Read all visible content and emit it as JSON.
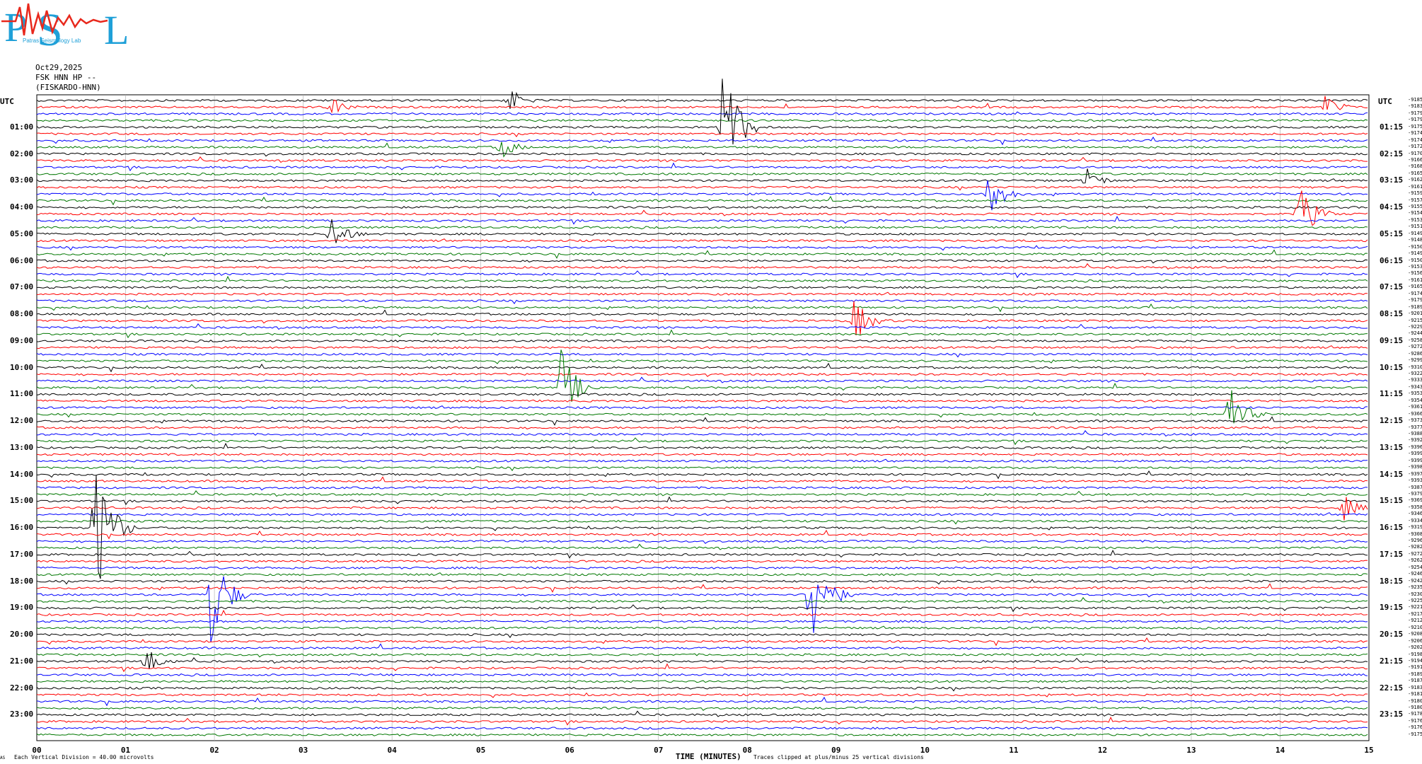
{
  "logo": {
    "letters": [
      "P",
      "S",
      "L"
    ],
    "subtitle": "Patras Seismology Lab",
    "colors": {
      "primary": "#1fa0d8",
      "wave": "#e8281c"
    }
  },
  "header": {
    "date": "Oct29,2025",
    "station": "FSK HNN HP --",
    "site": "(FISKARDO-HNN)"
  },
  "axis": {
    "utc_left": "UTC",
    "utc_right": "UTC",
    "left_times": [
      "01:00",
      "02:00",
      "03:00",
      "04:00",
      "05:00",
      "06:00",
      "07:00",
      "08:00",
      "09:00",
      "10:00",
      "11:00",
      "12:00",
      "13:00",
      "14:00",
      "15:00",
      "16:00",
      "17:00",
      "18:00",
      "19:00",
      "20:00",
      "21:00",
      "22:00",
      "23:00"
    ],
    "right_times": [
      "01:15",
      "02:15",
      "03:15",
      "04:15",
      "05:15",
      "06:15",
      "07:15",
      "08:15",
      "09:15",
      "10:15",
      "11:15",
      "12:15",
      "13:15",
      "14:15",
      "15:15",
      "16:15",
      "17:15",
      "18:15",
      "19:15",
      "20:15",
      "21:15",
      "22:15",
      "23:15"
    ],
    "right_counts": [
      "-9185",
      "-9183",
      "-9179",
      "-9179",
      "-9175",
      "-9174",
      "-9174",
      "-9172",
      "-9170",
      "-9166",
      "-9168",
      "-9165",
      "-9162",
      "-9161",
      "-9159",
      "-9157",
      "-9155",
      "-9154",
      "-9153",
      "-9151",
      "-9149",
      "-9148",
      "-9150",
      "-9149",
      "-9150",
      "-9153",
      "-9156",
      "-9161",
      "-9165",
      "-9174",
      "-9179",
      "-9189",
      "-9201",
      "-9215",
      "-9229",
      "-9244",
      "-9258",
      "-9272",
      "-9286",
      "-9299",
      "-9310",
      "-9322",
      "-9333",
      "-9343",
      "-9353",
      "-9354",
      "-9361",
      "-9366",
      "-9373",
      "-9377",
      "-9388",
      "-9392",
      "-9396",
      "-9399",
      "-9399",
      "-9398",
      "-9397",
      "-9393",
      "-9387",
      "-9379",
      "-9369",
      "-9358",
      "-9346",
      "-9334",
      "-9319",
      "-9308",
      "-9296",
      "-9282",
      "-9272",
      "-9262",
      "-9254",
      "-9246",
      "-9242",
      "-9235",
      "-9230",
      "-9225",
      "-9221",
      "-9217",
      "-9212",
      "-9210",
      "-9208",
      "-9206",
      "-9202",
      "-9198",
      "-9194",
      "-9191",
      "-9189",
      "-9187",
      "-9183",
      "-9181",
      "-9180",
      "-9180",
      "-9178",
      "-9176",
      "-9176",
      "-9175"
    ],
    "x_ticks": [
      "00",
      "01",
      "02",
      "03",
      "04",
      "05",
      "06",
      "07",
      "08",
      "09",
      "10",
      "11",
      "12",
      "13",
      "14",
      "15"
    ],
    "x_label": "TIME (MINUTES)"
  },
  "footer": {
    "scale": "Each Vertical Division =   40.00 microvolts",
    "clip": "Traces clipped at plus/minus 25 vertical divisions",
    "corner": "AS"
  },
  "trace_colors": [
    "#000000",
    "#ff0000",
    "#0000ff",
    "#007700"
  ],
  "events": [
    {
      "minute": 3.3,
      "hour_index": 1,
      "amp": 4
    },
    {
      "minute": 5.3,
      "hour_index": 0,
      "amp": 5
    },
    {
      "minute": 7.7,
      "hour_index": 4,
      "amp": 30
    },
    {
      "minute": 14.5,
      "hour_index": 1,
      "amp": 5
    },
    {
      "minute": 5.2,
      "hour_index": 7,
      "amp": 5
    },
    {
      "minute": 10.7,
      "hour_index": 14,
      "amp": 10
    },
    {
      "minute": 11.8,
      "hour_index": 12,
      "amp": 5
    },
    {
      "minute": 14.2,
      "hour_index": 17,
      "amp": 12
    },
    {
      "minute": 3.3,
      "hour_index": 20,
      "amp": 8
    },
    {
      "minute": 5.9,
      "hour_index": 43,
      "amp": 14
    },
    {
      "minute": 9.2,
      "hour_index": 33,
      "amp": 8
    },
    {
      "minute": 13.4,
      "hour_index": 47,
      "amp": 12
    },
    {
      "minute": 0.65,
      "hour_index": 64,
      "amp": 30
    },
    {
      "minute": 1.95,
      "hour_index": 74,
      "amp": 22
    },
    {
      "minute": 8.7,
      "hour_index": 74,
      "amp": 25
    },
    {
      "minute": 14.7,
      "hour_index": 61,
      "amp": 5
    },
    {
      "minute": 1.2,
      "hour_index": 84,
      "amp": 6
    }
  ]
}
